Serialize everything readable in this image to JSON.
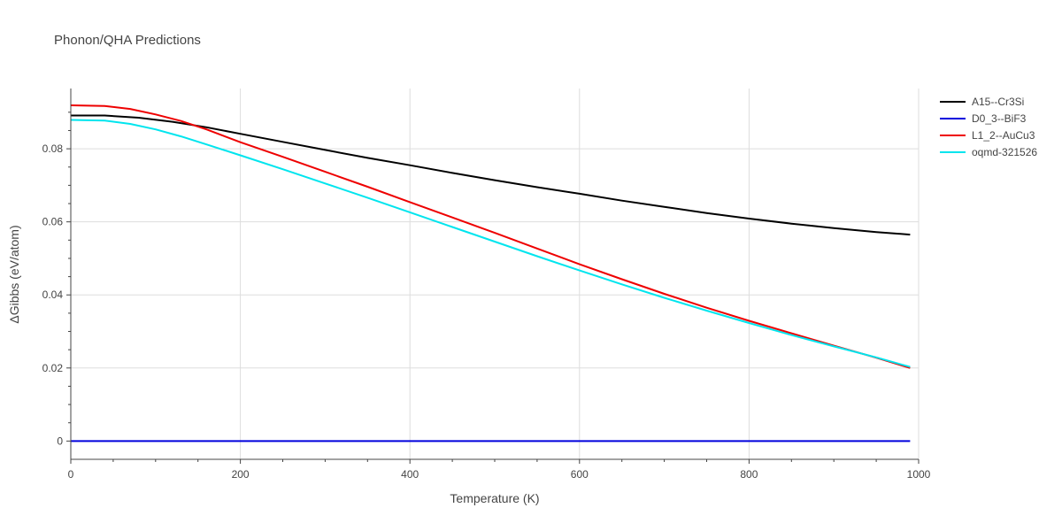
{
  "chart_data": {
    "type": "line",
    "title": "Phonon/QHA Predictions",
    "xlabel": "Temperature (K)",
    "ylabel": "ΔGibbs (eV/atom)",
    "xlim": [
      0,
      1000
    ],
    "ylim": [
      -0.005,
      0.0965
    ],
    "xticks": [
      0,
      200,
      400,
      600,
      800,
      1000
    ],
    "xtick_labels": [
      "0",
      "200",
      "400",
      "600",
      "800",
      "1000"
    ],
    "yticks": [
      0,
      0.02,
      0.04,
      0.06,
      0.08
    ],
    "ytick_labels": [
      "0",
      "0.02",
      "0.04",
      "0.06",
      "0.08"
    ],
    "grid": true,
    "legend_position": "right",
    "series": [
      {
        "name": "A15--Cr3Si",
        "color": "#000000",
        "x": [
          0,
          40,
          80,
          120,
          160,
          200,
          250,
          300,
          350,
          400,
          450,
          500,
          550,
          600,
          650,
          700,
          750,
          800,
          850,
          900,
          950,
          990
        ],
        "y": [
          0.0891,
          0.0891,
          0.0885,
          0.0874,
          0.0859,
          0.0841,
          0.0819,
          0.0797,
          0.0775,
          0.0755,
          0.0734,
          0.0714,
          0.0695,
          0.0677,
          0.0658,
          0.0641,
          0.0624,
          0.0609,
          0.0595,
          0.0583,
          0.0572,
          0.0565
        ]
      },
      {
        "name": "D0_3--BiF3",
        "color": "#0000dd",
        "x": [
          0,
          990
        ],
        "y": [
          0.0,
          0.0
        ]
      },
      {
        "name": "L1_2--AuCu3",
        "color": "#ee0000",
        "x": [
          0,
          40,
          70,
          100,
          130,
          160,
          200,
          250,
          300,
          350,
          400,
          450,
          500,
          550,
          600,
          650,
          700,
          750,
          800,
          850,
          900,
          950,
          990
        ],
        "y": [
          0.0919,
          0.0917,
          0.0909,
          0.0894,
          0.0876,
          0.0853,
          0.0818,
          0.0778,
          0.0737,
          0.0696,
          0.0654,
          0.0612,
          0.057,
          0.0527,
          0.0484,
          0.0443,
          0.0403,
          0.0365,
          0.0329,
          0.0295,
          0.0261,
          0.0228,
          0.02
        ]
      },
      {
        "name": "oqmd-321526",
        "color": "#00e5ee",
        "x": [
          0,
          40,
          70,
          100,
          130,
          160,
          200,
          250,
          300,
          350,
          400,
          450,
          500,
          550,
          600,
          650,
          700,
          750,
          800,
          850,
          900,
          950,
          990
        ],
        "y": [
          0.0879,
          0.0877,
          0.0868,
          0.0853,
          0.0834,
          0.0812,
          0.0782,
          0.0744,
          0.0705,
          0.0666,
          0.0626,
          0.0586,
          0.0546,
          0.0506,
          0.0467,
          0.0429,
          0.0392,
          0.0357,
          0.0323,
          0.029,
          0.0259,
          0.0229,
          0.0203
        ]
      }
    ]
  }
}
